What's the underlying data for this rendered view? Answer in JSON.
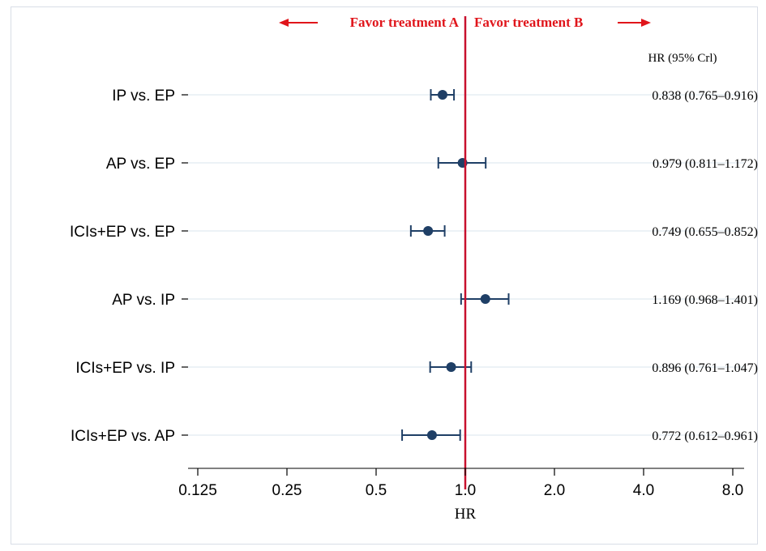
{
  "chart_data": {
    "type": "forest",
    "xlabel": "HR",
    "x_scale": "log2",
    "xlim": [
      0.11,
      9.0
    ],
    "x_ticks": [
      0.125,
      0.25,
      0.5,
      1.0,
      2.0,
      4.0,
      8.0
    ],
    "x_tick_labels": [
      "0.125",
      "0.25",
      "0.5",
      "1.0",
      "2.0",
      "4.0",
      "8.0"
    ],
    "reference_line": 1.0,
    "favor_left_label": "Favor treatment A",
    "favor_right_label": "Favor treatment B",
    "estimate_column_header": "HR (95% Crl)",
    "rows": [
      {
        "label": "IP vs. EP",
        "hr": 0.838,
        "lower": 0.765,
        "upper": 0.916,
        "text": "0.838 (0.765–0.916)"
      },
      {
        "label": "AP vs. EP",
        "hr": 0.979,
        "lower": 0.811,
        "upper": 1.172,
        "text": "0.979 (0.811–1.172)"
      },
      {
        "label": "ICIs+EP vs. EP",
        "hr": 0.749,
        "lower": 0.655,
        "upper": 0.852,
        "text": "0.749 (0.655–0.852)"
      },
      {
        "label": "AP vs. IP",
        "hr": 1.169,
        "lower": 0.968,
        "upper": 1.401,
        "text": "1.169 (0.968–1.401)"
      },
      {
        "label": "ICIs+EP vs. IP",
        "hr": 0.896,
        "lower": 0.761,
        "upper": 1.047,
        "text": "0.896 (0.761–1.047)"
      },
      {
        "label": "ICIs+EP vs. AP",
        "hr": 0.772,
        "lower": 0.612,
        "upper": 0.961,
        "text": "0.772 (0.612–0.961)"
      }
    ],
    "colors": {
      "point": "#1f3f66",
      "reference_line": "#c8102e",
      "favor_text": "#e0151b",
      "row_guide": "#e6edf3",
      "axis": "#000000"
    }
  }
}
